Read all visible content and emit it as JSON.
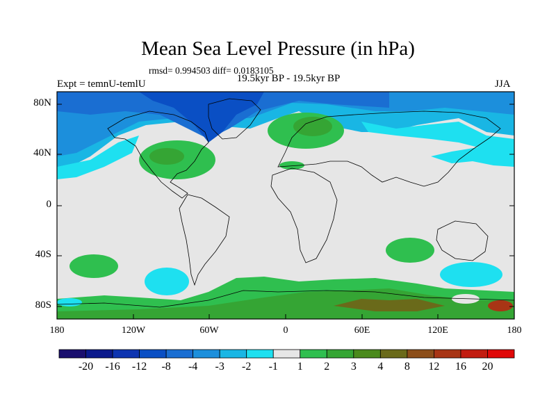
{
  "title": "Mean Sea Level Pressure (in hPa)",
  "stats": "rmsd= 0.994503 diff= 0.0183105",
  "subtitle": "19.5kyr BP - 19.5kyr BP",
  "experiment": "Expt = temnU-temlU",
  "season": "JJA",
  "lat_labels": [
    "80N",
    "40N",
    "0",
    "40S",
    "80S"
  ],
  "lon_labels": [
    "180",
    "120W",
    "60W",
    "0",
    "60E",
    "120E",
    "180"
  ],
  "colorbar": {
    "labels": [
      "-20",
      "-16",
      "-12",
      "-8",
      "-4",
      "-3",
      "-2",
      "-1",
      "1",
      "2",
      "3",
      "4",
      "8",
      "12",
      "16",
      "20"
    ],
    "colors": [
      "#1a0f6e",
      "#0b1a8c",
      "#0d34b0",
      "#0a4fc4",
      "#1a6ed2",
      "#1c8fdc",
      "#19b6e4",
      "#1ee0f0",
      "#e6e6e6",
      "#2fbf4f",
      "#35a534",
      "#4a8a1c",
      "#6a6a1a",
      "#8c4e1a",
      "#a83515",
      "#c21c10",
      "#e00808"
    ]
  },
  "colors": {
    "neutral": "#e6e6e6",
    "land_outline": "#000000"
  }
}
